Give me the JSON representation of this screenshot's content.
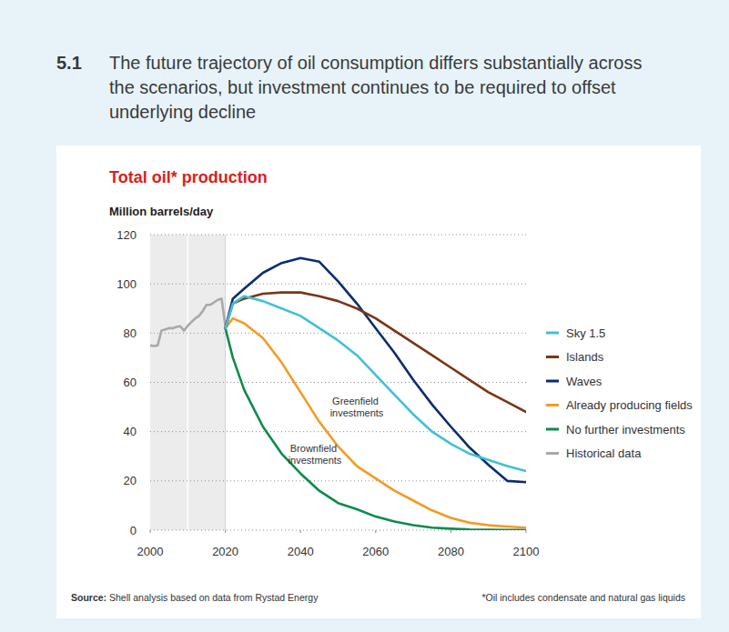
{
  "chart_data": {
    "type": "line",
    "figure_number": "5.1",
    "heading": "The future trajectory of oil consumption differs substantially across the scenarios, but investment continues to be required to offset underlying decline",
    "title": "Total oil* production",
    "ylabel": "Million barrels/day",
    "source": "Source: Shell analysis based on data from Rystad Energy",
    "note": "*Oil includes condensate and natural gas liquids",
    "annotations": [
      "Greenfield investments",
      "Brownfield investments"
    ],
    "x": [
      2000,
      2001,
      2002,
      2003,
      2004,
      2005,
      2006,
      2007,
      2008,
      2009,
      2010,
      2011,
      2012,
      2013,
      2014,
      2015,
      2016,
      2017,
      2018,
      2019,
      2020,
      2022,
      2025,
      2030,
      2035,
      2040,
      2045,
      2050,
      2055,
      2060,
      2065,
      2070,
      2075,
      2080,
      2085,
      2090,
      2095,
      2100
    ],
    "xlim": [
      2000,
      2100
    ],
    "xticks": [
      2000,
      2020,
      2040,
      2060,
      2080,
      2100
    ],
    "ylim": [
      0,
      120
    ],
    "yticks": [
      0,
      20,
      40,
      60,
      80,
      100,
      120
    ],
    "grid": true,
    "legend": "right",
    "series": [
      {
        "name": "Sky 1.5",
        "color": "#41c0d8",
        "values": [
          null,
          null,
          null,
          null,
          null,
          null,
          null,
          null,
          null,
          null,
          null,
          null,
          null,
          null,
          null,
          null,
          null,
          null,
          null,
          null,
          82,
          92,
          95,
          93,
          90,
          87,
          82,
          77,
          71,
          63,
          55,
          47,
          40,
          35,
          31,
          28.5,
          26,
          24
        ]
      },
      {
        "name": "Islands",
        "color": "#7a3518",
        "values": [
          null,
          null,
          null,
          null,
          null,
          null,
          null,
          null,
          null,
          null,
          null,
          null,
          null,
          null,
          null,
          null,
          null,
          null,
          null,
          null,
          82,
          92,
          94,
          96,
          96.5,
          96.5,
          95,
          93,
          90,
          86,
          81,
          76,
          71,
          66,
          61,
          56,
          52,
          48
        ]
      },
      {
        "name": "Waves",
        "color": "#0b2d6f",
        "values": [
          null,
          null,
          null,
          null,
          null,
          null,
          null,
          null,
          null,
          null,
          null,
          null,
          null,
          null,
          null,
          null,
          null,
          null,
          null,
          null,
          82,
          94,
          98,
          104.5,
          108.5,
          110.5,
          109,
          101,
          92,
          82,
          72,
          61,
          51,
          42,
          33.5,
          26.5,
          20,
          19.5
        ]
      },
      {
        "name": "Already producing fields",
        "color": "#f59a23",
        "values": [
          null,
          null,
          null,
          null,
          null,
          null,
          null,
          null,
          null,
          null,
          null,
          null,
          null,
          null,
          null,
          null,
          null,
          null,
          null,
          null,
          82,
          86,
          84,
          78,
          68,
          56,
          44,
          34,
          26,
          21,
          16,
          12,
          8,
          5,
          3,
          2,
          1.5,
          1
        ]
      },
      {
        "name": "No further investments",
        "color": "#0e8a4d",
        "values": [
          null,
          null,
          null,
          null,
          null,
          null,
          null,
          null,
          null,
          null,
          null,
          null,
          null,
          null,
          null,
          null,
          null,
          null,
          null,
          null,
          82,
          70,
          57,
          42,
          31,
          23,
          16,
          11,
          8.5,
          5.5,
          3.5,
          2,
          1,
          0.6,
          0.3,
          0.2,
          0.1,
          0.1
        ]
      },
      {
        "name": "Historical data",
        "color": "#a9a9a9",
        "values": [
          75,
          74.8,
          75,
          81,
          81.5,
          82,
          82,
          82.5,
          82.8,
          81,
          83,
          84.5,
          86,
          87,
          89,
          91.5,
          91.5,
          92.5,
          93.5,
          94,
          83,
          null,
          null,
          null,
          null,
          null,
          null,
          null,
          null,
          null,
          null,
          null,
          null,
          null,
          null,
          null,
          null,
          null
        ]
      }
    ]
  }
}
